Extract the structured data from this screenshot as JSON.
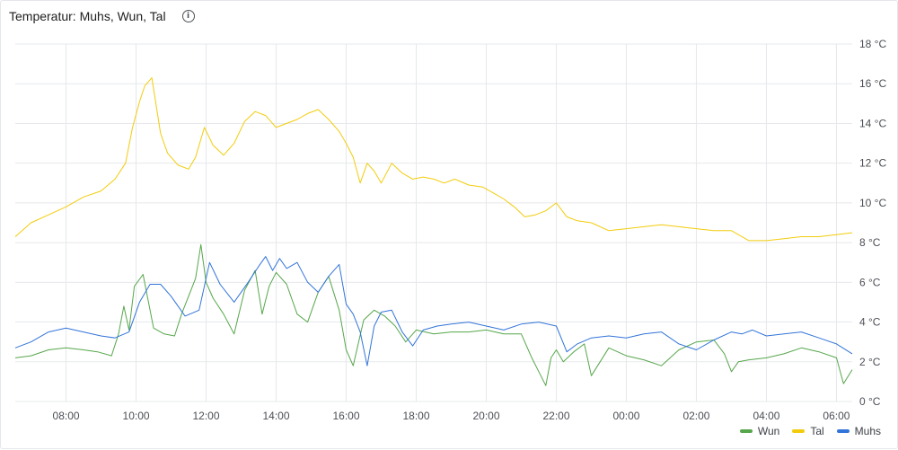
{
  "panel": {
    "title": "Temperatur: Muhs, Wun, Tal",
    "info_icon": "info-circle-icon"
  },
  "chart_data": {
    "type": "line",
    "title": "Temperatur: Muhs, Wun, Tal",
    "xlabel": "",
    "ylabel": "",
    "y_axis_position": "right",
    "ylim": [
      0,
      18
    ],
    "y_ticks": [
      0,
      2,
      4,
      6,
      8,
      10,
      12,
      14,
      16,
      18
    ],
    "y_tick_labels": [
      "0 °C",
      "2 °C",
      "4 °C",
      "6 °C",
      "8 °C",
      "10 °C",
      "12 °C",
      "14 °C",
      "16 °C",
      "18 °C"
    ],
    "xlim": [
      6.55,
      30.45
    ],
    "x_ticks": [
      8,
      10,
      12,
      14,
      16,
      18,
      20,
      22,
      24,
      26,
      28,
      30
    ],
    "x_tick_labels": [
      "08:00",
      "10:00",
      "12:00",
      "14:00",
      "16:00",
      "18:00",
      "20:00",
      "22:00",
      "00:00",
      "02:00",
      "04:00",
      "06:00"
    ],
    "grid": true,
    "legend_position": "bottom-right",
    "series": [
      {
        "name": "Wun",
        "color": "#56a64b",
        "x": [
          6.55,
          7.0,
          7.5,
          8.0,
          8.5,
          8.9,
          9.3,
          9.5,
          9.65,
          9.8,
          9.95,
          10.2,
          10.5,
          10.8,
          11.1,
          11.3,
          11.5,
          11.7,
          11.85,
          12.0,
          12.2,
          12.5,
          12.8,
          13.1,
          13.4,
          13.6,
          13.8,
          14.0,
          14.3,
          14.6,
          14.9,
          15.2,
          15.5,
          15.8,
          16.0,
          16.2,
          16.5,
          16.8,
          17.1,
          17.4,
          17.7,
          18.0,
          18.5,
          19.0,
          19.5,
          20.0,
          20.5,
          21.0,
          21.3,
          21.5,
          21.7,
          21.85,
          22.0,
          22.2,
          22.5,
          22.8,
          23.0,
          23.5,
          24.0,
          24.5,
          25.0,
          25.5,
          26.0,
          26.5,
          26.8,
          27.0,
          27.2,
          27.5,
          28.0,
          28.5,
          29.0,
          29.5,
          30.0,
          30.2,
          30.45
        ],
        "y": [
          2.2,
          2.3,
          2.6,
          2.7,
          2.6,
          2.5,
          2.3,
          3.4,
          4.8,
          3.6,
          5.8,
          6.4,
          3.7,
          3.4,
          3.3,
          4.4,
          5.3,
          6.2,
          7.9,
          6.0,
          5.2,
          4.4,
          3.4,
          5.6,
          6.6,
          4.4,
          5.8,
          6.5,
          5.9,
          4.4,
          4.0,
          5.5,
          6.3,
          4.6,
          2.6,
          1.8,
          4.1,
          4.6,
          4.3,
          3.8,
          3.0,
          3.6,
          3.4,
          3.5,
          3.5,
          3.6,
          3.4,
          3.4,
          2.2,
          1.5,
          0.8,
          2.2,
          2.6,
          2.0,
          2.5,
          2.9,
          1.3,
          2.7,
          2.3,
          2.1,
          1.8,
          2.6,
          3.0,
          3.1,
          2.4,
          1.5,
          2.0,
          2.1,
          2.2,
          2.4,
          2.7,
          2.5,
          2.2,
          0.9,
          1.6
        ]
      },
      {
        "name": "Tal",
        "color": "#f2cc0c",
        "x": [
          6.55,
          7.0,
          7.5,
          8.0,
          8.5,
          9.0,
          9.4,
          9.7,
          9.9,
          10.1,
          10.25,
          10.45,
          10.7,
          10.9,
          11.2,
          11.5,
          11.7,
          11.95,
          12.2,
          12.5,
          12.8,
          13.1,
          13.4,
          13.7,
          14.0,
          14.3,
          14.6,
          14.9,
          15.2,
          15.5,
          15.8,
          16.0,
          16.2,
          16.4,
          16.6,
          16.8,
          17.0,
          17.3,
          17.6,
          17.9,
          18.2,
          18.5,
          18.8,
          19.1,
          19.5,
          19.9,
          20.2,
          20.5,
          20.8,
          21.1,
          21.4,
          21.7,
          22.0,
          22.3,
          22.6,
          23.0,
          23.5,
          24.0,
          24.5,
          25.0,
          25.5,
          26.0,
          26.5,
          27.0,
          27.5,
          28.0,
          28.5,
          29.0,
          29.5,
          30.0,
          30.45
        ],
        "y": [
          8.3,
          9.0,
          9.4,
          9.8,
          10.3,
          10.6,
          11.2,
          12.0,
          13.8,
          15.1,
          15.9,
          16.3,
          13.5,
          12.5,
          11.9,
          11.7,
          12.3,
          13.8,
          12.9,
          12.4,
          13.0,
          14.1,
          14.6,
          14.4,
          13.8,
          14.0,
          14.2,
          14.5,
          14.7,
          14.2,
          13.6,
          13.0,
          12.3,
          11.0,
          12.0,
          11.6,
          11.0,
          12.0,
          11.5,
          11.2,
          11.3,
          11.2,
          11.0,
          11.2,
          10.9,
          10.8,
          10.5,
          10.2,
          9.8,
          9.3,
          9.4,
          9.6,
          10.0,
          9.3,
          9.1,
          9.0,
          8.6,
          8.7,
          8.8,
          8.9,
          8.8,
          8.7,
          8.6,
          8.6,
          8.1,
          8.1,
          8.2,
          8.3,
          8.3,
          8.4,
          8.5
        ]
      },
      {
        "name": "Muhs",
        "color": "#3274d9",
        "x": [
          6.55,
          7.0,
          7.5,
          8.0,
          8.5,
          9.0,
          9.4,
          9.8,
          10.1,
          10.4,
          10.7,
          11.0,
          11.4,
          11.8,
          12.1,
          12.4,
          12.8,
          13.2,
          13.5,
          13.7,
          13.9,
          14.1,
          14.3,
          14.6,
          14.9,
          15.2,
          15.5,
          15.8,
          16.0,
          16.2,
          16.4,
          16.6,
          16.8,
          17.0,
          17.3,
          17.6,
          17.9,
          18.2,
          18.6,
          19.0,
          19.5,
          20.0,
          20.5,
          21.0,
          21.5,
          22.0,
          22.3,
          22.6,
          23.0,
          23.5,
          24.0,
          24.5,
          25.0,
          25.5,
          26.0,
          26.5,
          27.0,
          27.3,
          27.6,
          28.0,
          28.5,
          29.0,
          29.5,
          30.0,
          30.45
        ],
        "y": [
          2.7,
          3.0,
          3.5,
          3.7,
          3.5,
          3.3,
          3.2,
          3.5,
          5.0,
          5.9,
          5.9,
          5.3,
          4.3,
          4.6,
          7.0,
          5.9,
          5.0,
          6.0,
          6.8,
          7.3,
          6.6,
          7.2,
          6.7,
          7.0,
          6.0,
          5.5,
          6.3,
          6.9,
          4.9,
          4.4,
          3.5,
          1.8,
          3.8,
          4.5,
          4.6,
          3.5,
          2.8,
          3.6,
          3.8,
          3.9,
          4.0,
          3.8,
          3.6,
          3.9,
          4.0,
          3.8,
          2.5,
          2.9,
          3.2,
          3.3,
          3.2,
          3.4,
          3.5,
          2.9,
          2.6,
          3.1,
          3.5,
          3.4,
          3.6,
          3.3,
          3.4,
          3.5,
          3.2,
          2.9,
          2.4
        ]
      }
    ]
  }
}
